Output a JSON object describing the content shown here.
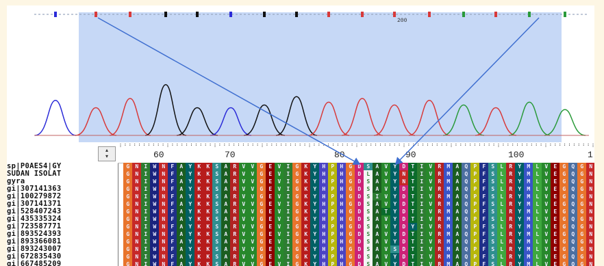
{
  "chromatogram": {
    "ruler_label": "200"
  },
  "alignment": {
    "ruler_labels": [
      "60",
      "70",
      "80",
      "90",
      "100",
      "1"
    ],
    "sequence_names": [
      "sp|P0AES4|GY",
      "SUDAN ISOLAT",
      "gyra",
      "gi|307141363",
      "gi|100279872",
      "gi|307141371",
      "gi|528407243",
      "gi|435335324",
      "gi|723587771",
      "gi|893524393",
      "gi|893366081",
      "gi|893243007",
      "gi|672835430",
      "gi|667485209"
    ],
    "consensus": "GNIWNFAYKKSARVVGEVIGKYHPHGDSAVYDTIVRMAQPFSLRYMLVEGQGNF",
    "variant_rows": {
      "1": {
        "27": "L",
        "31": "N"
      },
      "2": {
        "31": "N"
      },
      "4": {
        "28": "I"
      },
      "6": {
        "29": "T"
      },
      "8": {
        "32": "Y"
      },
      "11": {
        "30": "S"
      }
    },
    "colors": {
      "G": "#e8742c",
      "N": "#c62828",
      "I": "#2e7d32",
      "W": "#1a237e",
      "F": "#1f2f88",
      "A": "#1b5e20",
      "Y": "#006064",
      "K": "#b71c1c",
      "S": "#2f8f8f",
      "R": "#b22222",
      "V": "#27882b",
      "E": "#8e0000",
      "H": "#4b44c2",
      "P": "#b7b70c",
      "D": "#cc2277",
      "T": "#0b6b2b",
      "M": "#3954c8",
      "Q": "#4c6fa0",
      "L": "#3ea83e",
      "C": "#d4c020"
    }
  }
}
